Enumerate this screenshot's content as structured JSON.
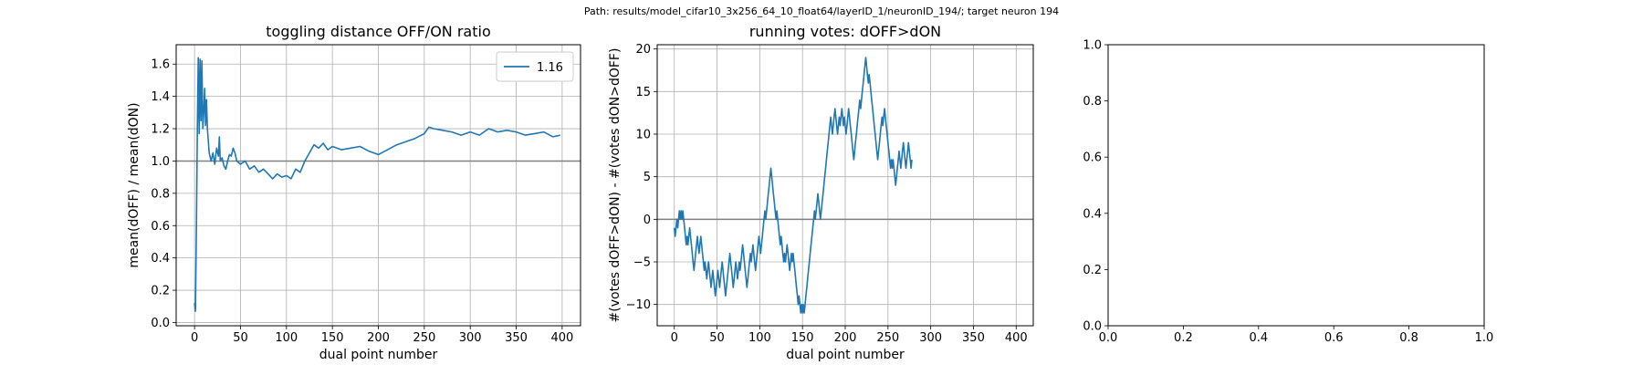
{
  "suptitle": "Path: results/model_cifar10_3x256_64_10_float64/layerID_1/neuronID_194/; target neuron 194",
  "colors": {
    "series": "#1f77b4",
    "refline": "#808080",
    "grid": "#b0b0b0",
    "axes": "#000000"
  },
  "chart_data": [
    {
      "type": "line",
      "title": "toggling distance OFF/ON ratio",
      "xlabel": "dual point number",
      "ylabel": "mean(dOFF) / mean(dON)",
      "xlim": [
        -20,
        420
      ],
      "ylim": [
        -0.02,
        1.72
      ],
      "xticks": [
        0,
        50,
        100,
        150,
        200,
        250,
        300,
        350,
        400
      ],
      "yticks": [
        0.0,
        0.2,
        0.4,
        0.6,
        0.8,
        1.0,
        1.2,
        1.4,
        1.6
      ],
      "xtick_labels": [
        "0",
        "50",
        "100",
        "150",
        "200",
        "250",
        "300",
        "350",
        "400"
      ],
      "ytick_labels": [
        "0.0",
        "0.2",
        "0.4",
        "0.6",
        "0.8",
        "1.0",
        "1.2",
        "1.4",
        "1.6"
      ],
      "grid": true,
      "hline": 1.0,
      "legend": {
        "position": "upper right",
        "entries": [
          "1.16"
        ]
      },
      "series": [
        {
          "name": "1.16",
          "points": [
            [
              0,
              0.12
            ],
            [
              1,
              0.07
            ],
            [
              2,
              0.6
            ],
            [
              3,
              1.2
            ],
            [
              4,
              1.64
            ],
            [
              5,
              1.17
            ],
            [
              6,
              1.63
            ],
            [
              7,
              1.25
            ],
            [
              8,
              1.62
            ],
            [
              9,
              1.2
            ],
            [
              10,
              1.3
            ],
            [
              11,
              1.45
            ],
            [
              12,
              1.22
            ],
            [
              13,
              1.38
            ],
            [
              14,
              1.2
            ],
            [
              16,
              1.05
            ],
            [
              18,
              1.0
            ],
            [
              20,
              1.05
            ],
            [
              22,
              0.98
            ],
            [
              24,
              1.08
            ],
            [
              26,
              1.03
            ],
            [
              27,
              1.15
            ],
            [
              28,
              1.0
            ],
            [
              30,
              1.02
            ],
            [
              32,
              0.97
            ],
            [
              34,
              0.95
            ],
            [
              36,
              1.0
            ],
            [
              38,
              1.04
            ],
            [
              40,
              1.03
            ],
            [
              42,
              1.08
            ],
            [
              44,
              1.05
            ],
            [
              46,
              1.0
            ],
            [
              50,
              0.98
            ],
            [
              55,
              1.0
            ],
            [
              60,
              0.95
            ],
            [
              65,
              0.97
            ],
            [
              70,
              0.93
            ],
            [
              75,
              0.95
            ],
            [
              80,
              0.92
            ],
            [
              85,
              0.89
            ],
            [
              90,
              0.92
            ],
            [
              95,
              0.9
            ],
            [
              100,
              0.91
            ],
            [
              105,
              0.89
            ],
            [
              110,
              0.95
            ],
            [
              115,
              0.93
            ],
            [
              120,
              1.0
            ],
            [
              125,
              1.05
            ],
            [
              130,
              1.1
            ],
            [
              135,
              1.08
            ],
            [
              140,
              1.11
            ],
            [
              145,
              1.07
            ],
            [
              150,
              1.09
            ],
            [
              160,
              1.07
            ],
            [
              170,
              1.08
            ],
            [
              180,
              1.09
            ],
            [
              190,
              1.06
            ],
            [
              200,
              1.04
            ],
            [
              210,
              1.07
            ],
            [
              220,
              1.1
            ],
            [
              230,
              1.12
            ],
            [
              240,
              1.14
            ],
            [
              250,
              1.17
            ],
            [
              255,
              1.21
            ],
            [
              260,
              1.2
            ],
            [
              270,
              1.19
            ],
            [
              280,
              1.18
            ],
            [
              290,
              1.16
            ],
            [
              300,
              1.18
            ],
            [
              310,
              1.16
            ],
            [
              320,
              1.2
            ],
            [
              330,
              1.18
            ],
            [
              340,
              1.19
            ],
            [
              350,
              1.18
            ],
            [
              360,
              1.16
            ],
            [
              370,
              1.17
            ],
            [
              380,
              1.18
            ],
            [
              390,
              1.15
            ],
            [
              398,
              1.16
            ]
          ]
        }
      ]
    },
    {
      "type": "line",
      "title": "running votes: dOFF>dON",
      "xlabel": "dual point number",
      "ylabel": "#(votes dOFF>dON) - #(votes dON>dOFF)",
      "xlim": [
        -20,
        420
      ],
      "ylim": [
        -12.5,
        20.5
      ],
      "xticks": [
        0,
        50,
        100,
        150,
        200,
        250,
        300,
        350,
        400
      ],
      "yticks": [
        -10,
        -5,
        0,
        5,
        10,
        15,
        20
      ],
      "xtick_labels": [
        "0",
        "50",
        "100",
        "150",
        "200",
        "250",
        "300",
        "350",
        "400"
      ],
      "ytick_labels": [
        "−10",
        "−5",
        "0",
        "5",
        "10",
        "15",
        "20"
      ],
      "grid": true,
      "hline": 0,
      "series": [
        {
          "values": [
            -1,
            -2,
            -1,
            0,
            -1,
            0,
            1,
            0,
            1,
            0,
            1,
            0,
            -1,
            -2,
            -3,
            -2,
            -3,
            -2,
            -1,
            -2,
            -3,
            -4,
            -5,
            -6,
            -5,
            -4,
            -3,
            -2,
            -3,
            -4,
            -3,
            -2,
            -3,
            -4,
            -5,
            -6,
            -5,
            -6,
            -7,
            -6,
            -5,
            -6,
            -7,
            -8,
            -7,
            -6,
            -7,
            -8,
            -9,
            -8,
            -7,
            -6,
            -7,
            -8,
            -7,
            -6,
            -5,
            -6,
            -7,
            -8,
            -9,
            -8,
            -7,
            -6,
            -5,
            -4,
            -5,
            -6,
            -7,
            -8,
            -7,
            -6,
            -5,
            -6,
            -7,
            -6,
            -5,
            -6,
            -5,
            -4,
            -3,
            -4,
            -5,
            -6,
            -7,
            -8,
            -7,
            -6,
            -5,
            -4,
            -5,
            -4,
            -3,
            -4,
            -5,
            -6,
            -5,
            -4,
            -3,
            -2,
            -3,
            -4,
            -3,
            -2,
            -1,
            0,
            1,
            0,
            1,
            2,
            3,
            4,
            5,
            6,
            5,
            4,
            3,
            2,
            1,
            0,
            1,
            0,
            -1,
            -2,
            -3,
            -2,
            -3,
            -4,
            -5,
            -4,
            -5,
            -4,
            -3,
            -4,
            -5,
            -6,
            -5,
            -4,
            -5,
            -4,
            -5,
            -6,
            -7,
            -8,
            -9,
            -10,
            -9,
            -10,
            -11,
            -10,
            -11,
            -10,
            -11,
            -10,
            -9,
            -8,
            -7,
            -6,
            -5,
            -4,
            -3,
            -2,
            -1,
            0,
            1,
            0,
            1,
            2,
            3,
            2,
            1,
            0,
            1,
            2,
            3,
            4,
            5,
            6,
            7,
            8,
            9,
            10,
            11,
            12,
            11,
            10,
            11,
            12,
            13,
            12,
            11,
            10,
            11,
            12,
            11,
            12,
            13,
            12,
            11,
            12,
            11,
            10,
            11,
            12,
            13,
            12,
            11,
            10,
            9,
            8,
            7,
            8,
            9,
            10,
            11,
            12,
            13,
            14,
            13,
            14,
            15,
            16,
            17,
            18,
            19,
            18,
            17,
            16,
            17,
            16,
            15,
            14,
            13,
            12,
            11,
            10,
            9,
            8,
            7,
            8,
            9,
            10,
            11,
            12,
            11,
            12,
            13,
            12,
            11,
            10,
            9,
            8,
            7,
            6,
            7,
            6,
            7,
            6,
            5,
            4,
            5,
            6,
            7,
            8,
            7,
            6,
            7,
            8,
            9,
            8,
            7,
            6,
            7,
            8,
            9,
            8,
            7,
            6,
            7
          ]
        }
      ]
    },
    {
      "type": "line",
      "title": "",
      "xlabel": "",
      "ylabel": "",
      "xlim": [
        0,
        1
      ],
      "ylim": [
        0,
        1
      ],
      "xticks": [
        0.0,
        0.2,
        0.4,
        0.6,
        0.8,
        1.0
      ],
      "yticks": [
        0.0,
        0.2,
        0.4,
        0.6,
        0.8,
        1.0
      ],
      "xtick_labels": [
        "0.0",
        "0.2",
        "0.4",
        "0.6",
        "0.8",
        "1.0"
      ],
      "ytick_labels": [
        "0.0",
        "0.2",
        "0.4",
        "0.6",
        "0.8",
        "1.0"
      ],
      "grid": false,
      "series": []
    }
  ]
}
